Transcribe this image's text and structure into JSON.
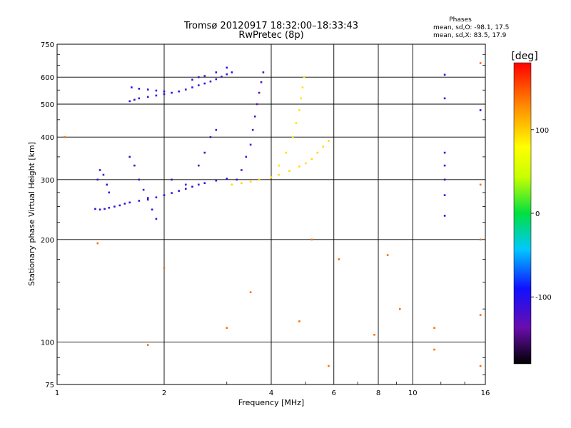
{
  "chart_data": {
    "type": "scatter",
    "title": "Tromsø 20120917 18:32:00–18:33:43",
    "subtitle": "RwPretec (8p)",
    "xlabel": "Frequency [MHz]",
    "ylabel": "Stationary phase Virtual Height [km]",
    "x_scale": "log",
    "y_scale": "log",
    "xlim": [
      1,
      16
    ],
    "ylim": [
      75,
      750
    ],
    "x_ticks": [
      1,
      2,
      4,
      6,
      8,
      10,
      16
    ],
    "x_tick_labels": [
      "1",
      "2",
      "4",
      "6",
      "8",
      "10",
      "16"
    ],
    "y_ticks": [
      75,
      100,
      200,
      300,
      400,
      500,
      600,
      750
    ],
    "y_tick_labels": [
      "75",
      "100",
      "200",
      "300",
      "400",
      "500",
      "600",
      "750"
    ],
    "grid": true,
    "stats_header": "Phases",
    "stats_lines": [
      "mean, sd,O: -98.1, 17.5",
      "mean, sd,X:  83.5, 17.9"
    ],
    "colorbar": {
      "label": "[deg]",
      "range": [
        -180,
        180
      ],
      "ticks": [
        100,
        0,
        -100
      ],
      "tick_labels": [
        "100",
        "0",
        "-100"
      ],
      "colormap": "rainbow: black at -180, violet, blue, cyan, green, yellow, orange, red at +180"
    },
    "traces": [
      {
        "name": "",
        "phase": -110,
        "points": [
          [
            1.28,
            246
          ],
          [
            1.32,
            245
          ],
          [
            1.36,
            246
          ],
          [
            1.4,
            248
          ],
          [
            1.45,
            250
          ],
          [
            1.5,
            252
          ],
          [
            1.55,
            255
          ],
          [
            1.6,
            257
          ],
          [
            1.7,
            260
          ],
          [
            1.8,
            262
          ],
          [
            1.9,
            266
          ],
          [
            2.0,
            270
          ],
          [
            2.1,
            274
          ],
          [
            2.2,
            278
          ],
          [
            2.3,
            282
          ],
          [
            2.4,
            286
          ],
          [
            2.5,
            290
          ],
          [
            2.6,
            293
          ],
          [
            2.8,
            298
          ],
          [
            3.0,
            302
          ]
        ]
      },
      {
        "name": "",
        "phase": 95,
        "points": [
          [
            3.1,
            290
          ],
          [
            3.3,
            293
          ],
          [
            3.5,
            296
          ],
          [
            3.7,
            300
          ],
          [
            4.0,
            305
          ],
          [
            4.2,
            310
          ],
          [
            4.5,
            318
          ],
          [
            4.8,
            328
          ],
          [
            5.0,
            335
          ],
          [
            5.2,
            345
          ],
          [
            5.4,
            360
          ],
          [
            5.6,
            375
          ],
          [
            5.8,
            390
          ]
        ]
      },
      {
        "name": "",
        "phase": -110,
        "points": [
          [
            1.6,
            510
          ],
          [
            1.65,
            515
          ],
          [
            1.7,
            520
          ],
          [
            1.8,
            525
          ],
          [
            1.9,
            530
          ],
          [
            2.0,
            535
          ],
          [
            2.1,
            540
          ],
          [
            2.2,
            545
          ],
          [
            2.3,
            552
          ],
          [
            2.4,
            560
          ],
          [
            2.5,
            568
          ],
          [
            2.6,
            575
          ],
          [
            2.7,
            583
          ],
          [
            2.8,
            592
          ],
          [
            2.9,
            602
          ],
          [
            3.0,
            612
          ],
          [
            3.1,
            620
          ]
        ]
      },
      {
        "name": "",
        "phase": -110,
        "points": [
          [
            1.62,
            560
          ],
          [
            1.7,
            555
          ],
          [
            1.8,
            552
          ],
          [
            1.9,
            548
          ],
          [
            2.0,
            545
          ],
          [
            2.4,
            590
          ],
          [
            2.5,
            600
          ],
          [
            2.6,
            605
          ],
          [
            2.8,
            620
          ],
          [
            3.0,
            640
          ]
        ]
      },
      {
        "name": "",
        "phase": -125,
        "points": [
          [
            3.2,
            300
          ],
          [
            3.3,
            320
          ],
          [
            3.4,
            350
          ],
          [
            3.5,
            380
          ],
          [
            3.55,
            420
          ],
          [
            3.6,
            460
          ],
          [
            3.65,
            500
          ],
          [
            3.7,
            540
          ],
          [
            3.75,
            580
          ],
          [
            3.8,
            620
          ]
        ]
      },
      {
        "name": "",
        "phase": 90,
        "points": [
          [
            4.2,
            330
          ],
          [
            4.4,
            360
          ],
          [
            4.6,
            400
          ],
          [
            4.7,
            440
          ],
          [
            4.8,
            480
          ],
          [
            4.85,
            520
          ],
          [
            4.9,
            560
          ],
          [
            4.95,
            600
          ]
        ]
      },
      {
        "name": "",
        "phase": -115,
        "points": [
          [
            1.3,
            300
          ],
          [
            1.32,
            320
          ],
          [
            1.35,
            310
          ],
          [
            1.38,
            290
          ],
          [
            1.4,
            275
          ],
          [
            1.6,
            350
          ],
          [
            1.65,
            330
          ],
          [
            1.7,
            300
          ],
          [
            1.75,
            280
          ],
          [
            1.8,
            265
          ],
          [
            1.85,
            245
          ],
          [
            1.9,
            230
          ],
          [
            2.1,
            300
          ],
          [
            2.3,
            290
          ],
          [
            2.5,
            330
          ],
          [
            2.6,
            360
          ],
          [
            2.7,
            400
          ],
          [
            2.8,
            420
          ]
        ]
      },
      {
        "name": "",
        "phase": -100,
        "points": [
          [
            12.3,
            610
          ],
          [
            12.3,
            520
          ],
          [
            12.3,
            360
          ],
          [
            12.3,
            330
          ],
          [
            12.3,
            300
          ],
          [
            12.3,
            270
          ],
          [
            12.3,
            235
          ],
          [
            15.5,
            480
          ]
        ]
      },
      {
        "name": "",
        "phase": 140,
        "points": [
          [
            1.05,
            400
          ],
          [
            1.3,
            195
          ],
          [
            1.8,
            98
          ],
          [
            2.0,
            165
          ],
          [
            3.0,
            110
          ],
          [
            3.5,
            140
          ],
          [
            4.8,
            115
          ],
          [
            5.2,
            200
          ],
          [
            5.8,
            85
          ],
          [
            6.2,
            175
          ],
          [
            7.8,
            105
          ],
          [
            8.5,
            180
          ],
          [
            9.2,
            125
          ],
          [
            11.5,
            110
          ],
          [
            11.5,
            95
          ],
          [
            15.5,
            660
          ],
          [
            15.5,
            290
          ],
          [
            15.5,
            200
          ],
          [
            15.5,
            120
          ],
          [
            15.5,
            85
          ]
        ]
      }
    ]
  }
}
